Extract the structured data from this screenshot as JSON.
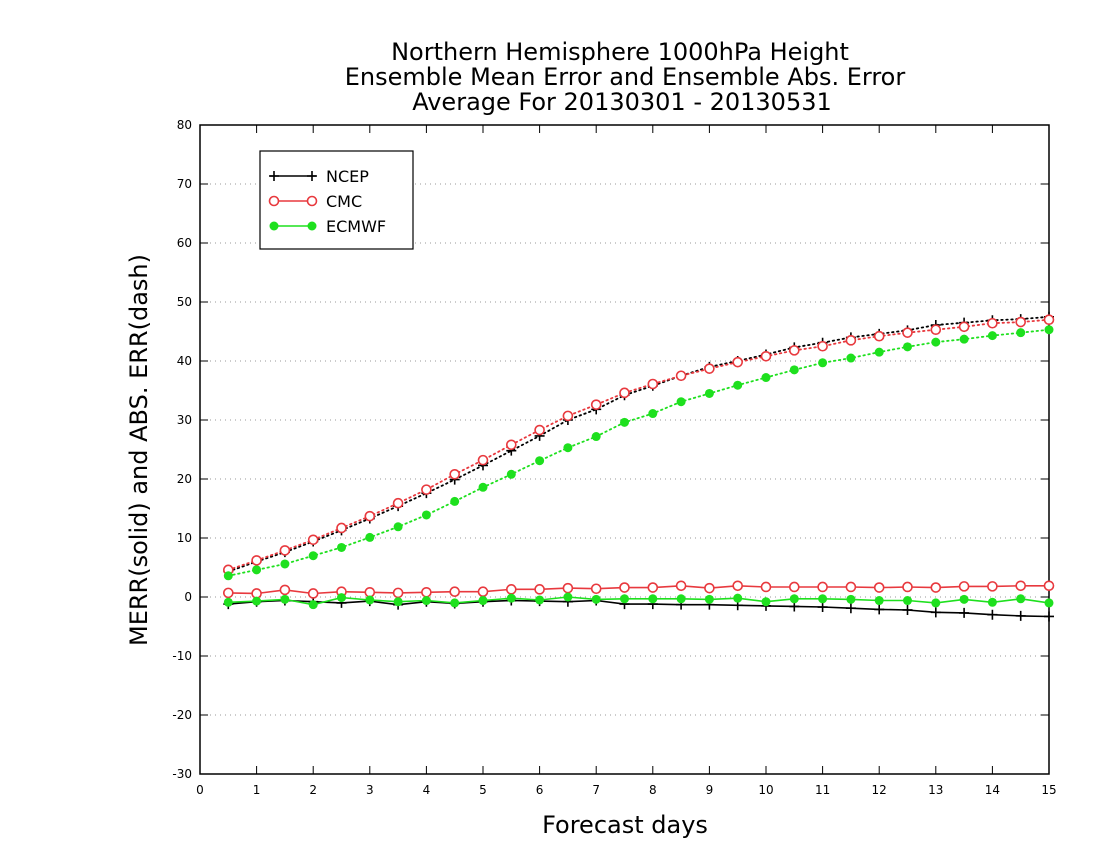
{
  "chart_data": {
    "type": "line",
    "title": [
      "Northern Hemisphere 1000hPa Height",
      "Ensemble Mean Error and Ensemble Abs. Error",
      "Average For 20130301 - 20130531"
    ],
    "xlabel": "Forecast days",
    "ylabel": "MERR(solid) and ABS. ERR(dash)",
    "xlim": [
      0,
      15
    ],
    "ylim": [
      -30,
      80
    ],
    "xticks": [
      0,
      1,
      2,
      3,
      4,
      5,
      6,
      7,
      8,
      9,
      10,
      11,
      12,
      13,
      14,
      15
    ],
    "yticks": [
      -30,
      -20,
      -10,
      0,
      10,
      20,
      30,
      40,
      50,
      60,
      70,
      80
    ],
    "grid": "horizontal dotted",
    "legend_position": "top-left",
    "x": [
      0.5,
      1,
      1.5,
      2,
      2.5,
      3,
      3.5,
      4,
      4.5,
      5,
      5.5,
      6,
      6.5,
      7,
      7.5,
      8,
      8.5,
      9,
      9.5,
      10,
      10.5,
      11,
      11.5,
      12,
      12.5,
      13,
      13.5,
      14,
      14.5,
      15
    ],
    "series": [
      {
        "name": "NCEP",
        "color": "#000000",
        "marker": "plus",
        "mean_error": [
          -1.2,
          -0.8,
          -0.6,
          -0.8,
          -1.0,
          -0.7,
          -1.3,
          -0.8,
          -1.1,
          -0.8,
          -0.6,
          -0.7,
          -0.8,
          -0.6,
          -1.2,
          -1.2,
          -1.3,
          -1.3,
          -1.4,
          -1.5,
          -1.6,
          -1.7,
          -1.9,
          -2.1,
          -2.2,
          -2.6,
          -2.7,
          -3.0,
          -3.2,
          -3.3
        ],
        "abs_error": [
          4.3,
          6.0,
          7.6,
          9.4,
          11.3,
          13.3,
          15.4,
          17.6,
          19.9,
          22.3,
          24.8,
          27.3,
          30.0,
          31.8,
          34.2,
          35.8,
          37.5,
          39.0,
          40.0,
          41.1,
          42.3,
          43.1,
          44.0,
          44.6,
          45.2,
          46.1,
          46.5,
          46.9,
          47.1,
          47.5
        ]
      },
      {
        "name": "CMC",
        "color": "#e8393e",
        "marker": "open-circle",
        "mean_error": [
          0.7,
          0.6,
          1.2,
          0.6,
          0.9,
          0.8,
          0.7,
          0.8,
          0.9,
          0.9,
          1.3,
          1.3,
          1.5,
          1.4,
          1.6,
          1.6,
          1.9,
          1.5,
          1.9,
          1.7,
          1.7,
          1.7,
          1.7,
          1.6,
          1.7,
          1.6,
          1.8,
          1.8,
          1.9,
          1.9
        ],
        "abs_error": [
          4.6,
          6.2,
          7.9,
          9.7,
          11.7,
          13.7,
          15.9,
          18.2,
          20.8,
          23.2,
          25.8,
          28.3,
          30.7,
          32.6,
          34.6,
          36.1,
          37.5,
          38.7,
          39.8,
          40.8,
          41.8,
          42.5,
          43.5,
          44.2,
          44.8,
          45.3,
          45.8,
          46.4,
          46.6,
          47.0
        ]
      },
      {
        "name": "ECMWF",
        "color": "#1ee01e",
        "marker": "filled-circle",
        "mean_error": [
          -0.9,
          -0.7,
          -0.4,
          -1.3,
          -0.1,
          -0.5,
          -0.8,
          -0.6,
          -1.0,
          -0.6,
          -0.2,
          -0.5,
          0.0,
          -0.4,
          -0.3,
          -0.3,
          -0.3,
          -0.4,
          -0.2,
          -0.8,
          -0.3,
          -0.3,
          -0.4,
          -0.6,
          -0.6,
          -1.0,
          -0.4,
          -0.9,
          -0.3,
          -1.0
        ],
        "abs_error": [
          3.6,
          4.6,
          5.6,
          7.0,
          8.4,
          10.1,
          11.9,
          13.9,
          16.2,
          18.6,
          20.8,
          23.1,
          25.3,
          27.2,
          29.6,
          31.1,
          33.1,
          34.5,
          35.9,
          37.2,
          38.5,
          39.7,
          40.5,
          41.5,
          42.4,
          43.2,
          43.7,
          44.3,
          44.8,
          45.3
        ]
      }
    ]
  }
}
